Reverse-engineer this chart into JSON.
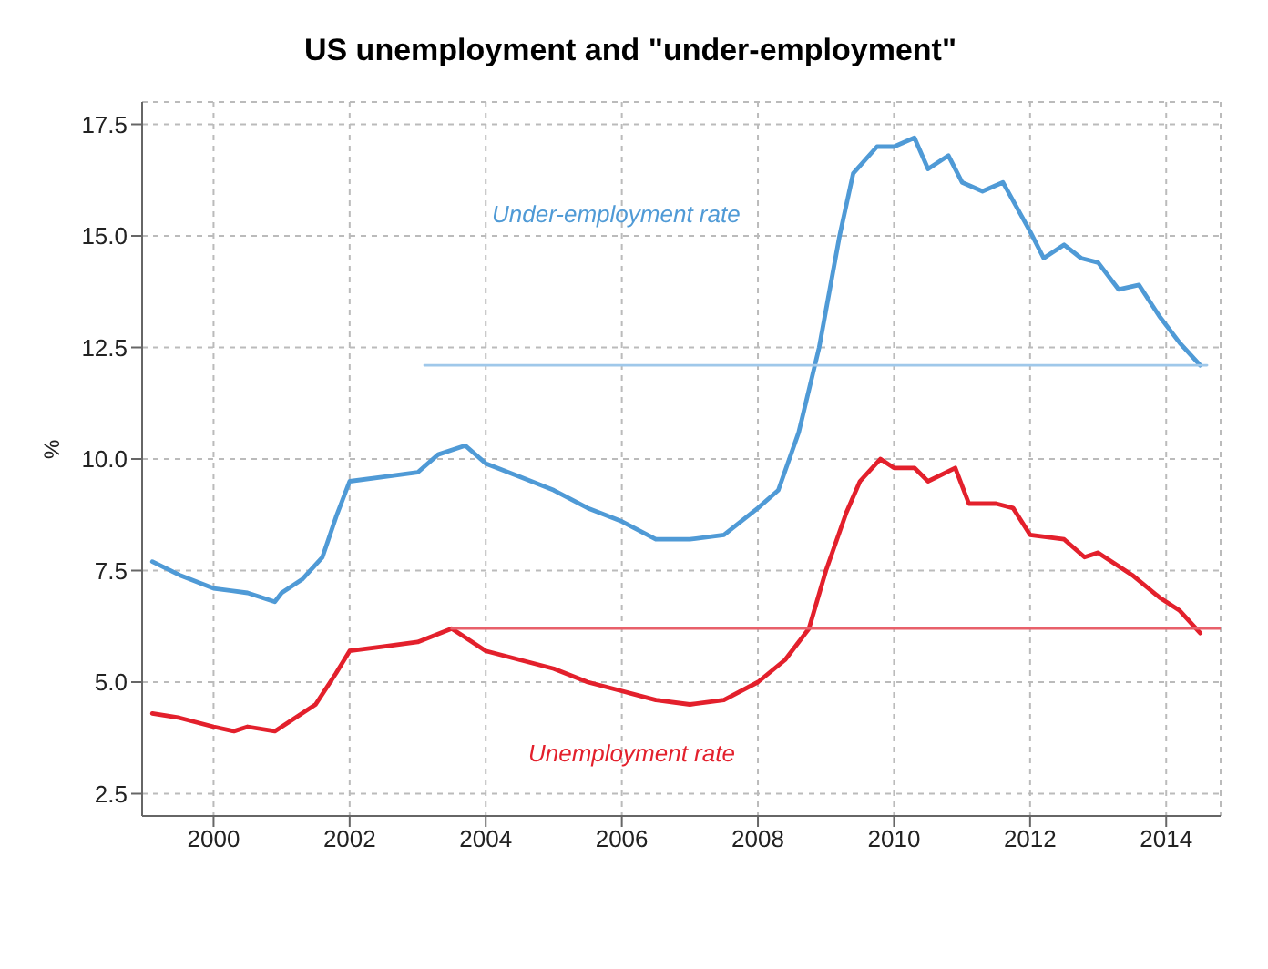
{
  "chart_data": {
    "type": "line",
    "title": "US unemployment and \"under-employment\"",
    "ylabel": "%",
    "xlim": [
      1998.95,
      2014.8
    ],
    "xticks": [
      2000,
      2002,
      2004,
      2006,
      2008,
      2010,
      2012,
      2014
    ],
    "ylim": [
      2,
      18
    ],
    "yticks": [
      {
        "value": 2.5,
        "label": "2.5"
      },
      {
        "value": 5,
        "label": "5.0"
      },
      {
        "value": 7.5,
        "label": "7.5"
      },
      {
        "value": 10,
        "label": "10.0"
      },
      {
        "value": 12.5,
        "label": "12.5"
      },
      {
        "value": 15,
        "label": "15.0"
      },
      {
        "value": 17.5,
        "label": "17.5"
      }
    ],
    "grid": true,
    "legend": false,
    "marker": "none",
    "line_style": "solid",
    "series": [
      {
        "name": "Under-employment rate",
        "color": "#4f9ad6",
        "x": [
          1999.1,
          1999.5,
          2000.0,
          2000.5,
          2000.9,
          2001.0,
          2001.3,
          2001.6,
          2001.8,
          2002.0,
          2002.5,
          2003.0,
          2003.3,
          2003.7,
          2004.0,
          2004.5,
          2005.0,
          2005.5,
          2006.0,
          2006.5,
          2007.0,
          2007.5,
          2008.0,
          2008.3,
          2008.6,
          2008.9,
          2009.2,
          2009.4,
          2009.75,
          2010.0,
          2010.3,
          2010.5,
          2010.8,
          2011.0,
          2011.3,
          2011.6,
          2012.0,
          2012.2,
          2012.5,
          2012.75,
          2013.0,
          2013.3,
          2013.6,
          2013.9,
          2014.2,
          2014.5
        ],
        "values": [
          7.7,
          7.4,
          7.1,
          7.0,
          6.8,
          7.0,
          7.3,
          7.8,
          8.7,
          9.5,
          9.6,
          9.7,
          10.1,
          10.3,
          9.9,
          9.6,
          9.3,
          8.9,
          8.6,
          8.2,
          8.2,
          8.3,
          8.9,
          9.3,
          10.6,
          12.5,
          15.0,
          16.4,
          17.0,
          17.0,
          17.2,
          16.5,
          16.8,
          16.2,
          16.0,
          16.2,
          15.1,
          14.5,
          14.8,
          14.5,
          14.4,
          13.8,
          13.9,
          13.2,
          12.6,
          12.1
        ]
      },
      {
        "name": "Unemployment rate",
        "color": "#e3202c",
        "x": [
          1999.1,
          1999.5,
          2000.0,
          2000.3,
          2000.5,
          2000.9,
          2001.2,
          2001.5,
          2001.8,
          2002.0,
          2002.5,
          2003.0,
          2003.5,
          2004.0,
          2004.5,
          2005.0,
          2005.5,
          2006.0,
          2006.5,
          2007.0,
          2007.5,
          2008.0,
          2008.4,
          2008.75,
          2009.0,
          2009.3,
          2009.5,
          2009.8,
          2010.0,
          2010.3,
          2010.5,
          2010.9,
          2011.1,
          2011.5,
          2011.75,
          2012.0,
          2012.5,
          2012.8,
          2013.0,
          2013.5,
          2013.9,
          2014.2,
          2014.5
        ],
        "values": [
          4.3,
          4.2,
          4.0,
          3.9,
          4.0,
          3.9,
          4.2,
          4.5,
          5.2,
          5.7,
          5.8,
          5.9,
          6.2,
          5.7,
          5.5,
          5.3,
          5.0,
          4.8,
          4.6,
          4.5,
          4.6,
          5.0,
          5.5,
          6.2,
          7.5,
          8.8,
          9.5,
          10.0,
          9.8,
          9.8,
          9.5,
          9.8,
          9.0,
          9.0,
          8.9,
          8.3,
          8.2,
          7.8,
          7.9,
          7.4,
          6.9,
          6.6,
          6.1
        ]
      },
      {
        "color": "#9fc8ea",
        "x": [
          2003.1,
          2014.6
        ],
        "values": [
          12.1,
          12.1
        ]
      },
      {
        "color": "#e8606a",
        "x": [
          2003.5,
          2014.8
        ],
        "values": [
          6.2,
          6.2
        ]
      }
    ]
  }
}
